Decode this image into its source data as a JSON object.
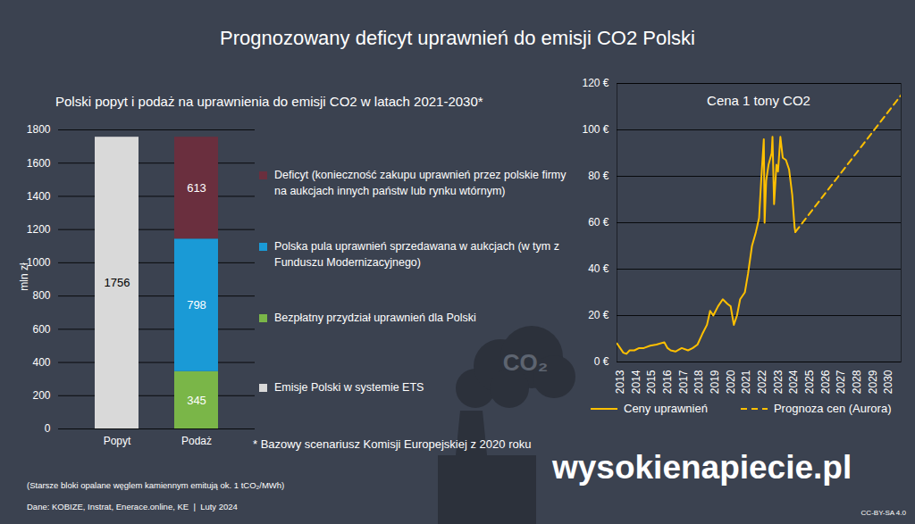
{
  "title": "Prognozowany deficyt uprawnień do emisji CO2 Polski",
  "icon_text": "CO₂",
  "footnote": "(Starsze bloki opalane węglem kamiennym emitują ok. 1 tCO₂/MWh)",
  "source": "Dane: KOBIZE, Instrat, Enerace.online, KE  |  Luty 2024",
  "logo": "wysokienapiecie.pl",
  "license": "CC-BY-SA 4.0",
  "chart_data": [
    {
      "type": "bar",
      "title": "Polski popyt i podaż na uprawnienia do emisji CO2 w latach 2021-2030*",
      "ylabel": "mln zł",
      "note": "* Bazowy scenariusz Komisji Europejskiej z 2020 roku",
      "categories": [
        "Popyt",
        "Podaż"
      ],
      "series": [
        {
          "name": "Emisje Polski w systemie ETS",
          "color": "#d9d9d9",
          "values": [
            1756,
            null
          ]
        },
        {
          "name": "Bezpłatny przydział uprawnień dla Polski",
          "color": "#7ab648",
          "values": [
            null,
            345
          ]
        },
        {
          "name": "Polska pula uprawnień sprzedawana w aukcjach (w tym z Funduszu Modernizacyjnego)",
          "color": "#1a9ad6",
          "values": [
            null,
            798
          ]
        },
        {
          "name": "Deficyt (konieczność zakupu uprawnień przez polskie firmy na aukcjach innych państw lub rynku wtórnym)",
          "color": "#6a2f3e",
          "values": [
            null,
            613
          ]
        }
      ],
      "stacked": true,
      "data_labels": true,
      "ylim": [
        0,
        1800
      ],
      "yticks": [
        0,
        200,
        400,
        600,
        800,
        1000,
        1200,
        1400,
        1600,
        1800
      ],
      "grid": true,
      "legend": "right"
    },
    {
      "type": "line",
      "title": "Cena 1 tony CO2",
      "series": [
        {
          "name": "Ceny uprawnień",
          "color": "#ffc000",
          "line_style": "solid",
          "x": [
            2012.8,
            2013.0,
            2013.2,
            2013.4,
            2013.6,
            2013.9,
            2014.2,
            2014.5,
            2014.9,
            2015.3,
            2015.8,
            2016.0,
            2016.2,
            2016.5,
            2016.9,
            2017.3,
            2017.6,
            2017.9,
            2018.2,
            2018.5,
            2018.7,
            2018.9,
            2019.2,
            2019.5,
            2019.8,
            2020.0,
            2020.2,
            2020.4,
            2020.6,
            2020.9,
            2021.1,
            2021.35,
            2021.6,
            2021.8,
            2021.95,
            2022.1,
            2022.15,
            2022.25,
            2022.4,
            2022.6,
            2022.65,
            2022.75,
            2022.9,
            2023.0,
            2023.15,
            2023.3,
            2023.5,
            2023.7,
            2023.9,
            2024.05,
            2024.1
          ],
          "values": [
            8,
            6,
            4,
            3.5,
            5,
            5,
            6,
            6,
            7,
            7.5,
            8.5,
            6,
            5,
            4.5,
            6,
            5,
            6,
            7.5,
            12,
            16,
            22,
            20,
            24,
            27,
            25,
            24,
            16,
            20,
            27,
            30,
            38,
            50,
            56,
            62,
            80,
            96,
            60,
            78,
            85,
            90,
            97,
            68,
            85,
            82,
            97,
            88,
            87,
            83,
            72,
            58,
            56
          ]
        },
        {
          "name": "Prognoza cen (Aurora)",
          "color": "#ffc000",
          "line_style": "dashed",
          "x": [
            2024.1,
            2030.8
          ],
          "values": [
            56,
            115
          ]
        }
      ],
      "xlim": [
        2012.8,
        2030.8
      ],
      "xticks": [
        2013,
        2014,
        2015,
        2016,
        2017,
        2018,
        2019,
        2020,
        2021,
        2022,
        2023,
        2024,
        2025,
        2026,
        2027,
        2028,
        2029,
        2030
      ],
      "ylim": [
        0,
        120
      ],
      "yticks": [
        {
          "value": 0,
          "label": "0 €"
        },
        {
          "value": 20,
          "label": "20 €"
        },
        {
          "value": 40,
          "label": "40 €"
        },
        {
          "value": 60,
          "label": "60 €"
        },
        {
          "value": 80,
          "label": "80 €"
        },
        {
          "value": 100,
          "label": "100 €"
        },
        {
          "value": 120,
          "label": "120 €"
        }
      ],
      "grid": true,
      "legend": "bottom"
    }
  ]
}
